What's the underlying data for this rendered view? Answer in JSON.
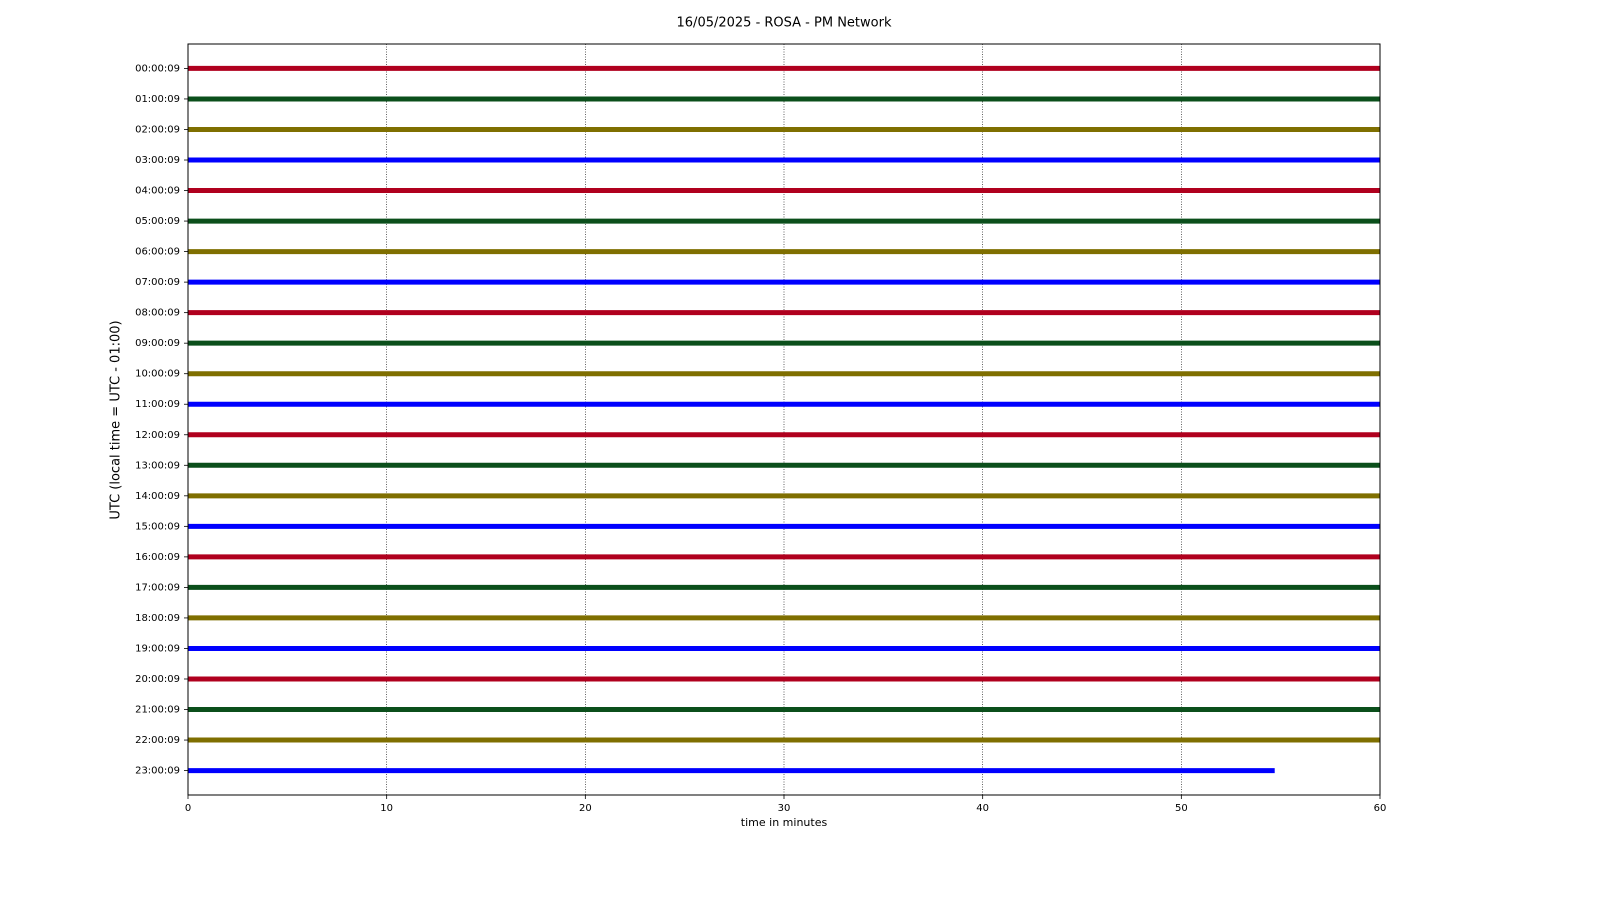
{
  "chart_data": {
    "type": "helicorder",
    "title": "16/05/2025 - ROSA - PM Network",
    "x_label": "time in minutes",
    "y_label": "UTC (local time = UTC - 01:00)",
    "xlim": [
      0,
      60
    ],
    "xticks": [
      0,
      10,
      20,
      30,
      40,
      50,
      60
    ],
    "grid": true,
    "categories": [
      "00:00:09",
      "01:00:09",
      "02:00:09",
      "03:00:09",
      "04:00:09",
      "05:00:09",
      "06:00:09",
      "07:00:09",
      "08:00:09",
      "09:00:09",
      "10:00:09",
      "11:00:09",
      "12:00:09",
      "13:00:09",
      "14:00:09",
      "15:00:09",
      "16:00:09",
      "17:00:09",
      "18:00:09",
      "19:00:09",
      "20:00:09",
      "21:00:09",
      "22:00:09",
      "23:00:09"
    ],
    "series": [
      {
        "color": "#b0001e",
        "x": [
          0,
          60
        ]
      },
      {
        "color": "#0b4f1b",
        "x": [
          0,
          60
        ]
      },
      {
        "color": "#7f6f00",
        "x": [
          0,
          60
        ]
      },
      {
        "color": "#0000ff",
        "x": [
          0,
          60
        ]
      },
      {
        "color": "#b0001e",
        "x": [
          0,
          60
        ]
      },
      {
        "color": "#0b4f1b",
        "x": [
          0,
          60
        ]
      },
      {
        "color": "#7f6f00",
        "x": [
          0,
          60
        ]
      },
      {
        "color": "#0000ff",
        "x": [
          0,
          60
        ]
      },
      {
        "color": "#b0001e",
        "x": [
          0,
          60
        ]
      },
      {
        "color": "#0b4f1b",
        "x": [
          0,
          60
        ]
      },
      {
        "color": "#7f6f00",
        "x": [
          0,
          60
        ]
      },
      {
        "color": "#0000ff",
        "x": [
          0,
          60
        ]
      },
      {
        "color": "#b0001e",
        "x": [
          0,
          60
        ]
      },
      {
        "color": "#0b4f1b",
        "x": [
          0,
          60
        ]
      },
      {
        "color": "#7f6f00",
        "x": [
          0,
          60
        ]
      },
      {
        "color": "#0000ff",
        "x": [
          0,
          60
        ]
      },
      {
        "color": "#b0001e",
        "x": [
          0,
          60
        ]
      },
      {
        "color": "#0b4f1b",
        "x": [
          0,
          60
        ]
      },
      {
        "color": "#7f6f00",
        "x": [
          0,
          60
        ]
      },
      {
        "color": "#0000ff",
        "x": [
          0,
          60
        ]
      },
      {
        "color": "#b0001e",
        "x": [
          0,
          60
        ]
      },
      {
        "color": "#0b4f1b",
        "x": [
          0,
          60
        ]
      },
      {
        "color": "#7f6f00",
        "x": [
          0,
          60
        ]
      },
      {
        "color": "#0000ff",
        "x": [
          0,
          54.7
        ]
      }
    ]
  }
}
